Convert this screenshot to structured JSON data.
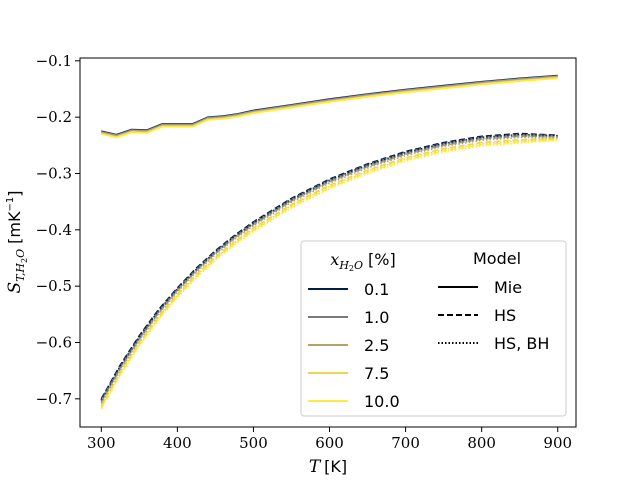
{
  "chart_data": {
    "type": "line",
    "xlabel": "T",
    "xlabel_unit": "[K]",
    "ylabel": "S",
    "ylabel_sub": "T,H",
    "ylabel_sub2": "2",
    "ylabel_sub3": "O",
    "ylabel_unit": "[mK",
    "ylabel_unit_sup": "−1",
    "ylabel_unit_close": "]",
    "xlim": [
      272,
      924
    ],
    "ylim": [
      -0.75,
      -0.095
    ],
    "xticks": [
      300,
      400,
      500,
      600,
      700,
      800,
      900
    ],
    "xtick_labels": [
      "300",
      "400",
      "500",
      "600",
      "700",
      "800",
      "900"
    ],
    "yticks": [
      -0.7,
      -0.6,
      -0.5,
      -0.4,
      -0.3,
      -0.2,
      -0.1
    ],
    "ytick_labels": [
      "−0.7",
      "−0.6",
      "−0.5",
      "−0.4",
      "−0.3",
      "−0.2",
      "−0.1"
    ],
    "grid": false,
    "legend": {
      "placement": "lower-right",
      "col1_title_main": "x",
      "col1_title_sub": "H",
      "col1_title_sub2": "2",
      "col1_title_sub3": "O",
      "col1_title_unit": "[%]",
      "col2_title": "Model",
      "compositions": [
        {
          "label": "0.1",
          "color": "#00204c"
        },
        {
          "label": "1.0",
          "color": "#7c7b78"
        },
        {
          "label": "2.5",
          "color": "#b3a26e"
        },
        {
          "label": "7.5",
          "color": "#efd54b"
        },
        {
          "label": "10.0",
          "color": "#ffe945"
        }
      ],
      "models": [
        {
          "label": "Mie",
          "style": "solid"
        },
        {
          "label": "HS",
          "style": "dashed"
        },
        {
          "label": "HS, BH",
          "style": "dotted"
        }
      ]
    },
    "series": [
      {
        "name": "0.1",
        "model": "Mie",
        "color": "#00204c",
        "style": "solid",
        "x": [
          300,
          320,
          340,
          360,
          380,
          400,
          420,
          440,
          460,
          480,
          500,
          550,
          600,
          650,
          700,
          750,
          800,
          850,
          900
        ],
        "y": [
          -0.225,
          -0.231,
          -0.222,
          -0.223,
          -0.212,
          -0.212,
          -0.212,
          -0.2,
          -0.198,
          -0.194,
          -0.188,
          -0.178,
          -0.168,
          -0.159,
          -0.151,
          -0.144,
          -0.137,
          -0.131,
          -0.126
        ]
      },
      {
        "name": "1.0",
        "model": "Mie",
        "color": "#7c7b78",
        "style": "solid",
        "x": [
          300,
          320,
          340,
          360,
          380,
          400,
          420,
          440,
          460,
          480,
          500,
          550,
          600,
          650,
          700,
          750,
          800,
          850,
          900
        ],
        "y": [
          -0.226,
          -0.232,
          -0.223,
          -0.224,
          -0.213,
          -0.213,
          -0.213,
          -0.201,
          -0.199,
          -0.195,
          -0.189,
          -0.179,
          -0.169,
          -0.16,
          -0.152,
          -0.145,
          -0.138,
          -0.132,
          -0.127
        ]
      },
      {
        "name": "2.5",
        "model": "Mie",
        "color": "#b3a26e",
        "style": "solid",
        "x": [
          300,
          320,
          340,
          360,
          380,
          400,
          420,
          440,
          460,
          480,
          500,
          550,
          600,
          650,
          700,
          750,
          800,
          850,
          900
        ],
        "y": [
          -0.227,
          -0.233,
          -0.224,
          -0.225,
          -0.214,
          -0.214,
          -0.214,
          -0.202,
          -0.2,
          -0.196,
          -0.19,
          -0.18,
          -0.17,
          -0.161,
          -0.153,
          -0.146,
          -0.139,
          -0.133,
          -0.128
        ]
      },
      {
        "name": "7.5",
        "model": "Mie",
        "color": "#efd54b",
        "style": "solid",
        "x": [
          300,
          320,
          340,
          360,
          380,
          400,
          420,
          440,
          460,
          480,
          500,
          550,
          600,
          650,
          700,
          750,
          800,
          850,
          900
        ],
        "y": [
          -0.229,
          -0.235,
          -0.226,
          -0.227,
          -0.216,
          -0.216,
          -0.216,
          -0.204,
          -0.202,
          -0.198,
          -0.192,
          -0.182,
          -0.172,
          -0.163,
          -0.155,
          -0.148,
          -0.141,
          -0.135,
          -0.13
        ]
      },
      {
        "name": "10.0",
        "model": "Mie",
        "color": "#ffe945",
        "style": "solid",
        "x": [
          300,
          320,
          340,
          360,
          380,
          400,
          420,
          440,
          460,
          480,
          500,
          550,
          600,
          650,
          700,
          750,
          800,
          850,
          900
        ],
        "y": [
          -0.23,
          -0.236,
          -0.227,
          -0.228,
          -0.217,
          -0.217,
          -0.217,
          -0.205,
          -0.203,
          -0.199,
          -0.193,
          -0.183,
          -0.173,
          -0.164,
          -0.156,
          -0.149,
          -0.142,
          -0.136,
          -0.131
        ]
      },
      {
        "name": "0.1",
        "model": "HS",
        "color": "#00204c",
        "style": "dashed",
        "x": [
          300,
          325,
          350,
          375,
          400,
          425,
          450,
          475,
          500,
          550,
          600,
          650,
          700,
          750,
          800,
          850,
          900
        ],
        "y": [
          -0.7,
          -0.64,
          -0.588,
          -0.542,
          -0.503,
          -0.468,
          -0.437,
          -0.41,
          -0.386,
          -0.344,
          -0.31,
          -0.283,
          -0.261,
          -0.245,
          -0.234,
          -0.229,
          -0.232
        ]
      },
      {
        "name": "1.0",
        "model": "HS",
        "color": "#7c7b78",
        "style": "dashed",
        "x": [
          300,
          325,
          350,
          375,
          400,
          425,
          450,
          475,
          500,
          550,
          600,
          650,
          700,
          750,
          800,
          850,
          900
        ],
        "y": [
          -0.702,
          -0.643,
          -0.591,
          -0.545,
          -0.505,
          -0.47,
          -0.439,
          -0.412,
          -0.388,
          -0.346,
          -0.312,
          -0.285,
          -0.263,
          -0.247,
          -0.236,
          -0.231,
          -0.233
        ]
      },
      {
        "name": "2.5",
        "model": "HS",
        "color": "#b3a26e",
        "style": "dashed",
        "x": [
          300,
          325,
          350,
          375,
          400,
          425,
          450,
          475,
          500,
          550,
          600,
          650,
          700,
          750,
          800,
          850,
          900
        ],
        "y": [
          -0.706,
          -0.646,
          -0.594,
          -0.548,
          -0.508,
          -0.473,
          -0.442,
          -0.415,
          -0.391,
          -0.349,
          -0.315,
          -0.288,
          -0.266,
          -0.25,
          -0.239,
          -0.234,
          -0.235
        ]
      },
      {
        "name": "7.5",
        "model": "HS",
        "color": "#efd54b",
        "style": "dashed",
        "x": [
          300,
          325,
          350,
          375,
          400,
          425,
          450,
          475,
          500,
          550,
          600,
          650,
          700,
          750,
          800,
          850,
          900
        ],
        "y": [
          -0.712,
          -0.652,
          -0.6,
          -0.554,
          -0.514,
          -0.479,
          -0.448,
          -0.421,
          -0.397,
          -0.355,
          -0.321,
          -0.294,
          -0.272,
          -0.256,
          -0.245,
          -0.24,
          -0.238
        ]
      },
      {
        "name": "10.0",
        "model": "HS",
        "color": "#ffe945",
        "style": "dashed",
        "x": [
          300,
          325,
          350,
          375,
          400,
          425,
          450,
          475,
          500,
          550,
          600,
          650,
          700,
          750,
          800,
          850,
          900
        ],
        "y": [
          -0.716,
          -0.656,
          -0.604,
          -0.558,
          -0.518,
          -0.483,
          -0.452,
          -0.425,
          -0.401,
          -0.359,
          -0.325,
          -0.298,
          -0.276,
          -0.26,
          -0.249,
          -0.244,
          -0.24
        ]
      },
      {
        "name": "0.1",
        "model": "HS, BH",
        "color": "#00204c",
        "style": "dotted",
        "x": [
          300,
          325,
          350,
          375,
          400,
          425,
          450,
          475,
          500,
          550,
          600,
          650,
          700,
          750,
          800,
          850,
          900
        ],
        "y": [
          -0.702,
          -0.642,
          -0.59,
          -0.544,
          -0.505,
          -0.47,
          -0.439,
          -0.412,
          -0.388,
          -0.346,
          -0.312,
          -0.285,
          -0.263,
          -0.247,
          -0.236,
          -0.231,
          -0.233
        ]
      },
      {
        "name": "1.0",
        "model": "HS, BH",
        "color": "#7c7b78",
        "style": "dotted",
        "x": [
          300,
          325,
          350,
          375,
          400,
          425,
          450,
          475,
          500,
          550,
          600,
          650,
          700,
          750,
          800,
          850,
          900
        ],
        "y": [
          -0.704,
          -0.645,
          -0.593,
          -0.547,
          -0.507,
          -0.472,
          -0.441,
          -0.414,
          -0.39,
          -0.348,
          -0.314,
          -0.287,
          -0.265,
          -0.249,
          -0.238,
          -0.233,
          -0.235
        ]
      },
      {
        "name": "2.5",
        "model": "HS, BH",
        "color": "#b3a26e",
        "style": "dotted",
        "x": [
          300,
          325,
          350,
          375,
          400,
          425,
          450,
          475,
          500,
          550,
          600,
          650,
          700,
          750,
          800,
          850,
          900
        ],
        "y": [
          -0.708,
          -0.648,
          -0.596,
          -0.55,
          -0.51,
          -0.475,
          -0.444,
          -0.417,
          -0.393,
          -0.351,
          -0.317,
          -0.29,
          -0.268,
          -0.252,
          -0.241,
          -0.236,
          -0.237
        ]
      },
      {
        "name": "7.5",
        "model": "HS, BH",
        "color": "#efd54b",
        "style": "dotted",
        "x": [
          300,
          325,
          350,
          375,
          400,
          425,
          450,
          475,
          500,
          550,
          600,
          650,
          700,
          750,
          800,
          850,
          900
        ],
        "y": [
          -0.714,
          -0.654,
          -0.602,
          -0.556,
          -0.516,
          -0.481,
          -0.45,
          -0.423,
          -0.399,
          -0.357,
          -0.323,
          -0.296,
          -0.274,
          -0.258,
          -0.247,
          -0.242,
          -0.239
        ]
      },
      {
        "name": "10.0",
        "model": "HS, BH",
        "color": "#ffe945",
        "style": "dotted",
        "x": [
          300,
          325,
          350,
          375,
          400,
          425,
          450,
          475,
          500,
          550,
          600,
          650,
          700,
          750,
          800,
          850,
          900
        ],
        "y": [
          -0.718,
          -0.658,
          -0.606,
          -0.56,
          -0.52,
          -0.485,
          -0.454,
          -0.427,
          -0.403,
          -0.361,
          -0.327,
          -0.3,
          -0.278,
          -0.262,
          -0.251,
          -0.246,
          -0.241
        ]
      }
    ]
  }
}
